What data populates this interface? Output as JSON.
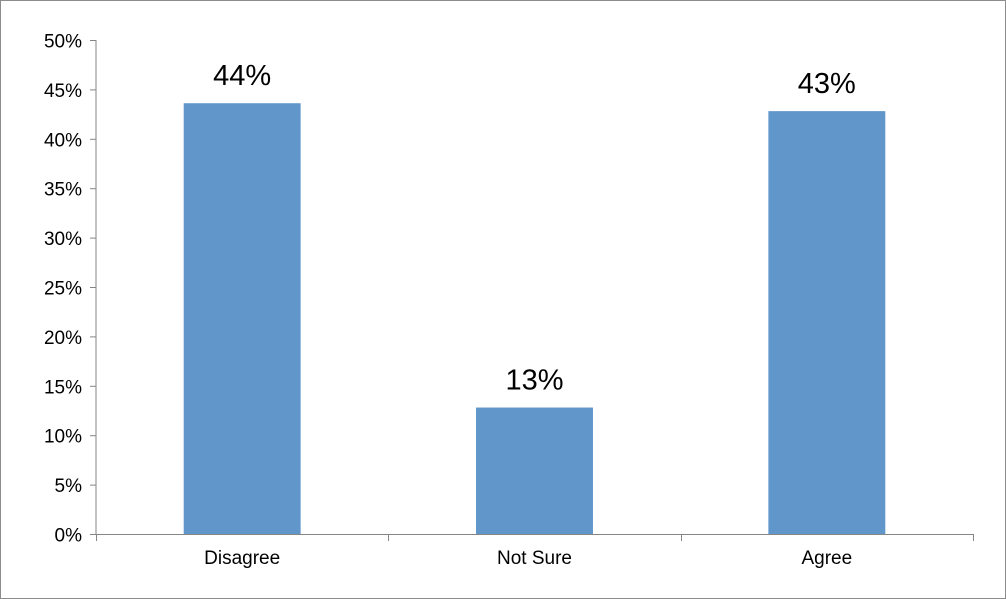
{
  "chart_data": {
    "type": "bar",
    "categories": [
      "Disagree",
      "Not Sure",
      "Agree"
    ],
    "values": [
      44,
      13,
      43
    ],
    "data_labels": [
      "44%",
      "13%",
      "43%"
    ],
    "bar_heights_percent": [
      43.6,
      12.8,
      42.8
    ],
    "ylim": [
      0,
      50
    ],
    "y_ticks": [
      0,
      5,
      10,
      15,
      20,
      25,
      30,
      35,
      40,
      45,
      50
    ],
    "y_tick_labels": [
      "0%",
      "5%",
      "10%",
      "15%",
      "20%",
      "25%",
      "30%",
      "35%",
      "40%",
      "45%",
      "50%"
    ],
    "grid": false,
    "legend": "none",
    "colors": {
      "bar": "#6096CA",
      "axis": "#868686",
      "frame": "#8C8C8C"
    }
  }
}
